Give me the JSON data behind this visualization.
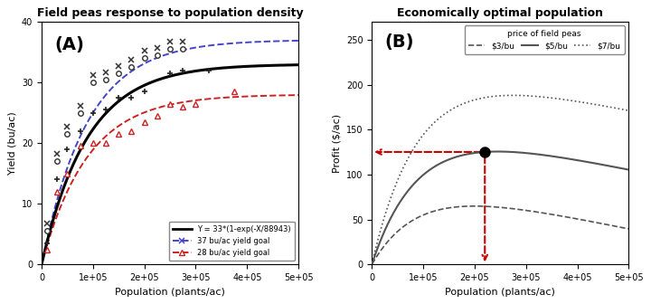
{
  "panel_A_title": "Field peas response to population density",
  "panel_B_title": "Economically optimal population",
  "xlabel": "Population (plants/ac)",
  "ylabel_A": "Yield (bu/ac)",
  "ylabel_B": "Profit ($/ac)",
  "label_A": "(A)",
  "label_B": "(B)",
  "x_max": 500000,
  "ylim_A": [
    0,
    40
  ],
  "ylim_B": [
    0,
    270
  ],
  "yticks_A": [
    0,
    10,
    20,
    30,
    40
  ],
  "yticks_B": [
    0,
    50,
    100,
    150,
    200,
    250
  ],
  "xticks": [
    0,
    100000,
    200000,
    300000,
    400000,
    500000
  ],
  "xtick_labels": [
    "0",
    "1e+05",
    "2e+05",
    "3e+05",
    "4e+05",
    "5e+05"
  ],
  "main_params": {
    "ymax": 33,
    "k": 88943
  },
  "goal37_params": {
    "ymax": 37,
    "k": 88943
  },
  "goal28_params": {
    "ymax": 28,
    "k": 88943
  },
  "seed_cost_per_plant": 0.000118,
  "prices": [
    3,
    5,
    7
  ],
  "opt_pop": 220000,
  "background_color": "#ffffff",
  "main_curve_color": "#000000",
  "goal37_color": "#4444cc",
  "goal28_color": "#cc2222",
  "profit_curve_color": "#555555",
  "arrow_color": "#cc0000",
  "scatter_37_data": [
    [
      10000,
      5.5
    ],
    [
      30000,
      17.0
    ],
    [
      50000,
      21.5
    ],
    [
      75000,
      25.0
    ],
    [
      100000,
      30.0
    ],
    [
      125000,
      30.5
    ],
    [
      150000,
      31.5
    ],
    [
      175000,
      32.5
    ],
    [
      200000,
      34.0
    ],
    [
      225000,
      34.5
    ],
    [
      250000,
      35.5
    ],
    [
      275000,
      35.5
    ]
  ],
  "scatter_main_data": [
    [
      10000,
      3.5
    ],
    [
      30000,
      14.0
    ],
    [
      50000,
      19.0
    ],
    [
      75000,
      22.0
    ],
    [
      100000,
      25.0
    ],
    [
      125000,
      25.5
    ],
    [
      150000,
      27.5
    ],
    [
      175000,
      27.5
    ],
    [
      200000,
      28.5
    ],
    [
      250000,
      31.5
    ],
    [
      275000,
      32.0
    ],
    [
      325000,
      32.0
    ]
  ],
  "scatter_28_data": [
    [
      10000,
      2.5
    ],
    [
      30000,
      12.0
    ],
    [
      50000,
      15.0
    ],
    [
      75000,
      19.5
    ],
    [
      100000,
      20.0
    ],
    [
      125000,
      20.0
    ],
    [
      150000,
      21.5
    ],
    [
      175000,
      22.0
    ],
    [
      200000,
      23.5
    ],
    [
      225000,
      24.5
    ],
    [
      250000,
      26.5
    ],
    [
      275000,
      26.0
    ],
    [
      300000,
      26.5
    ],
    [
      375000,
      28.5
    ]
  ],
  "legend_A_text": "Y = 33*(1-exp(-X/88943)",
  "legend_A_37": "37 bu/ac yield goal",
  "legend_A_28": "28 bu/ac yield goal",
  "legend_B_title": "price of field peas",
  "legend_B_3": "$3/bu",
  "legend_B_5": "$5/bu",
  "legend_B_7": "$7/bu"
}
